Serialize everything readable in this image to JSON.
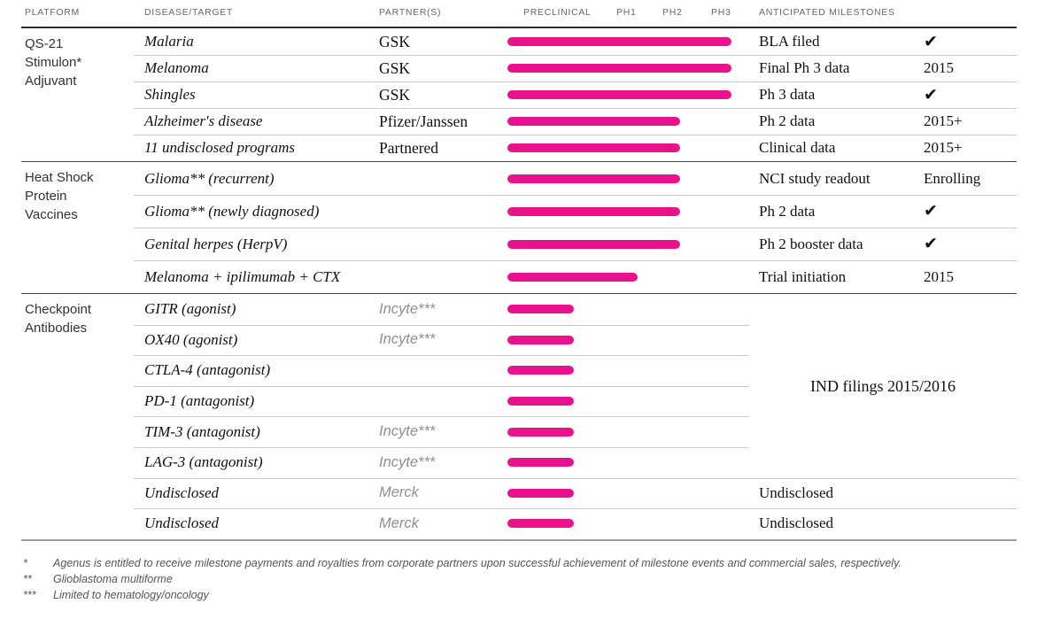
{
  "accent_color": "#e8138c",
  "header": {
    "columns": [
      "PLATFORM",
      "DISEASE/TARGET",
      "PARTNER(S)",
      "PRECLINICAL",
      "PH1",
      "PH2",
      "PH3",
      "ANTICIPATED MILESTONES"
    ]
  },
  "status_check_glyph": "✔",
  "chart_data": {
    "type": "table",
    "phases": [
      "Preclinical",
      "Ph 1",
      "Ph 2",
      "Ph 3"
    ],
    "groups": [
      {
        "platform": "QS-21 Stimulon* Adjuvant",
        "rows": [
          {
            "disease": "Malaria",
            "partner": "GSK",
            "stage": "ph3",
            "milestone": "BLA filed",
            "status": "check"
          },
          {
            "disease": "Melanoma",
            "partner": "GSK",
            "stage": "ph3",
            "milestone": "Final Ph 3 data",
            "status": "2015"
          },
          {
            "disease": "Shingles",
            "partner": "GSK",
            "stage": "ph3",
            "milestone": "Ph 3 data",
            "status": "check"
          },
          {
            "disease": "Alzheimer's disease",
            "partner": "Pfizer/Janssen",
            "stage": "ph2",
            "milestone": "Ph 2 data",
            "status": "2015+"
          },
          {
            "disease": "11 undisclosed programs",
            "partner": "Partnered",
            "stage": "ph2",
            "milestone": "Clinical data",
            "status": "2015+"
          }
        ]
      },
      {
        "platform": "Heat Shock Protein Vaccines",
        "rows": [
          {
            "disease": "Glioma** (recurrent)",
            "partner": "",
            "stage": "ph2",
            "milestone": "NCI study readout",
            "status": "Enrolling"
          },
          {
            "disease": "Glioma** (newly diagnosed)",
            "partner": "",
            "stage": "ph2",
            "milestone": "Ph 2 data",
            "status": "check"
          },
          {
            "disease": "Genital herpes (HerpV)",
            "partner": "",
            "stage": "ph2",
            "milestone": "Ph 2 booster data",
            "status": "check"
          },
          {
            "disease": "Melanoma + ipilimumab + CTX",
            "partner": "",
            "stage": "ph1x",
            "milestone": "Trial initiation",
            "status": "2015"
          }
        ]
      },
      {
        "platform": "Checkpoint Antibodies",
        "partner_muted": true,
        "span_milestone": "IND filings 2015/2016",
        "rows": [
          {
            "disease": "GITR (agonist)",
            "partner": "Incyte***",
            "stage": "pre",
            "milestone": "",
            "status": ""
          },
          {
            "disease": "OX40 (agonist)",
            "partner": "Incyte***",
            "stage": "pre",
            "milestone": "",
            "status": ""
          },
          {
            "disease": "CTLA-4 (antagonist)",
            "partner": "",
            "stage": "pre",
            "milestone": "",
            "status": ""
          },
          {
            "disease": "PD-1 (antagonist)",
            "partner": "",
            "stage": "pre",
            "milestone": "",
            "status": ""
          },
          {
            "disease": "TIM-3 (antagonist)",
            "partner": "Incyte***",
            "stage": "pre",
            "milestone": "",
            "status": ""
          },
          {
            "disease": "LAG-3 (antagonist)",
            "partner": "Incyte***",
            "stage": "pre",
            "milestone": "",
            "status": ""
          },
          {
            "disease": "Undisclosed",
            "partner": "Merck",
            "stage": "pre",
            "milestone": "Undisclosed",
            "status": ""
          },
          {
            "disease": "Undisclosed",
            "partner": "Merck",
            "stage": "pre",
            "milestone": "Undisclosed",
            "status": ""
          }
        ]
      }
    ]
  },
  "footnotes": [
    {
      "marker": "*",
      "text": "Agenus is entitled to receive milestone payments and royalties from corporate partners upon successful achievement of milestone events and commercial sales, respectively."
    },
    {
      "marker": "**",
      "text": "Glioblastoma multiforme"
    },
    {
      "marker": "***",
      "text": "Limited to hematology/oncology"
    }
  ]
}
